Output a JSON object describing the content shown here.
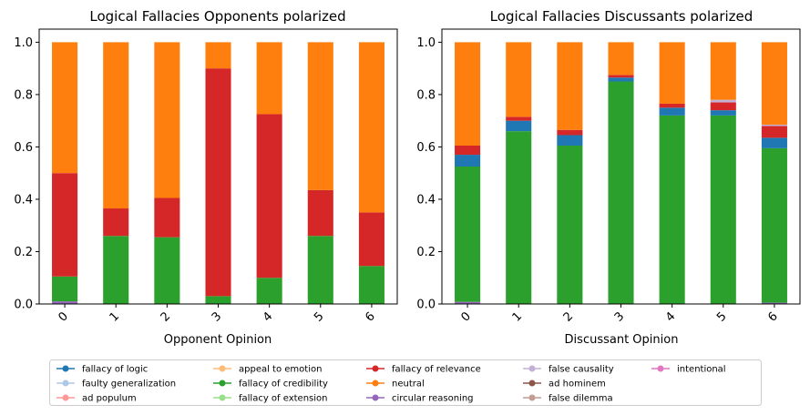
{
  "chart_data": [
    {
      "type": "bar",
      "stacked": true,
      "title": "Logical Fallacies Opponents polarized",
      "xlabel": "Opponent Opinion",
      "ylabel": "",
      "ylim": [
        0,
        1.05
      ],
      "yticks": [
        "0.0",
        "0.2",
        "0.4",
        "0.6",
        "0.8",
        "1.0"
      ],
      "categories": [
        "0",
        "1",
        "2",
        "3",
        "4",
        "5",
        "6"
      ],
      "series": [
        {
          "name": "circular reasoning",
          "color": "#9467bd",
          "values": [
            0.01,
            0.0,
            0.0,
            0.0,
            0.0,
            0.0,
            0.0
          ]
        },
        {
          "name": "fallacy of credibility",
          "color": "#2ca02c",
          "values": [
            0.095,
            0.26,
            0.255,
            0.03,
            0.1,
            0.26,
            0.145
          ]
        },
        {
          "name": "fallacy of logic",
          "color": "#1f77b4",
          "values": [
            0.0,
            0.0,
            0.0,
            0.0,
            0.0,
            0.0,
            0.0
          ]
        },
        {
          "name": "fallacy of relevance",
          "color": "#d62728",
          "values": [
            0.395,
            0.105,
            0.15,
            0.87,
            0.625,
            0.175,
            0.205
          ]
        },
        {
          "name": "neutral",
          "color": "#ff7f0e",
          "values": [
            0.5,
            0.635,
            0.595,
            0.1,
            0.275,
            0.565,
            0.65
          ]
        }
      ]
    },
    {
      "type": "bar",
      "stacked": true,
      "title": "Logical Fallacies Discussants polarized",
      "xlabel": "Discussant Opinion",
      "ylabel": "",
      "ylim": [
        0,
        1.05
      ],
      "yticks": [
        "0.0",
        "0.2",
        "0.4",
        "0.6",
        "0.8",
        "1.0"
      ],
      "categories": [
        "0",
        "1",
        "2",
        "3",
        "4",
        "5",
        "6"
      ],
      "series": [
        {
          "name": "circular reasoning",
          "color": "#9467bd",
          "values": [
            0.008,
            0.0,
            0.0,
            0.0,
            0.0,
            0.0,
            0.005
          ]
        },
        {
          "name": "fallacy of credibility",
          "color": "#2ca02c",
          "values": [
            0.517,
            0.66,
            0.605,
            0.85,
            0.72,
            0.72,
            0.59
          ]
        },
        {
          "name": "fallacy of logic",
          "color": "#1f77b4",
          "values": [
            0.045,
            0.04,
            0.04,
            0.015,
            0.03,
            0.02,
            0.04
          ]
        },
        {
          "name": "fallacy of relevance",
          "color": "#d62728",
          "values": [
            0.035,
            0.015,
            0.02,
            0.01,
            0.015,
            0.03,
            0.045
          ]
        },
        {
          "name": "false causality",
          "color": "#c5b0d5",
          "values": [
            0.0,
            0.0,
            0.0,
            0.0,
            0.0,
            0.01,
            0.005
          ]
        },
        {
          "name": "neutral",
          "color": "#ff7f0e",
          "values": [
            0.395,
            0.285,
            0.335,
            0.125,
            0.235,
            0.22,
            0.315
          ]
        }
      ]
    }
  ],
  "legend": {
    "placement": "bottom",
    "entries": [
      {
        "label": "fallacy of logic",
        "color": "#1f77b4"
      },
      {
        "label": "faulty generalization",
        "color": "#aec7e8"
      },
      {
        "label": "ad populum",
        "color": "#ff9896"
      },
      {
        "label": "appeal to emotion",
        "color": "#ffbb78"
      },
      {
        "label": "fallacy of credibility",
        "color": "#2ca02c"
      },
      {
        "label": "fallacy of extension",
        "color": "#98df8a"
      },
      {
        "label": "fallacy of relevance",
        "color": "#d62728"
      },
      {
        "label": "neutral",
        "color": "#ff7f0e"
      },
      {
        "label": "circular reasoning",
        "color": "#9467bd"
      },
      {
        "label": "false causality",
        "color": "#c5b0d5"
      },
      {
        "label": "ad hominem",
        "color": "#8c564b"
      },
      {
        "label": "false dilemma",
        "color": "#c49c94"
      },
      {
        "label": "intentional",
        "color": "#e377c2"
      }
    ]
  }
}
